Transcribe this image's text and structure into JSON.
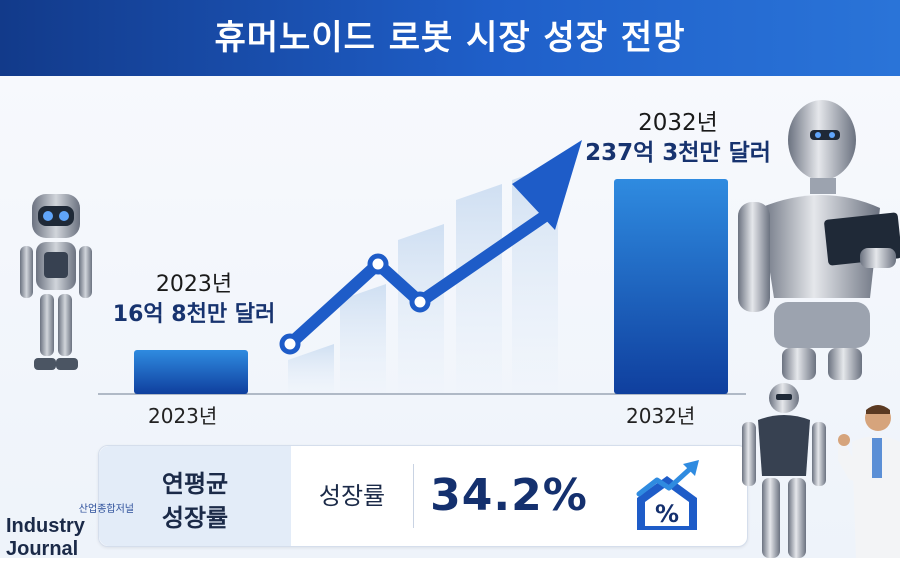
{
  "header": {
    "title": "휴머노이드 로봇 시장 성장 전망"
  },
  "chart_data": {
    "type": "bar",
    "categories": [
      "2023년",
      "2032년"
    ],
    "values": [
      16.8,
      237.3
    ],
    "value_labels": [
      "16억 8천만 달러",
      "237억 3천만 달러"
    ],
    "year_labels": [
      "2023년",
      "2032년"
    ],
    "unit": "억 달러",
    "colors": {
      "bar_top": "#2f8be0",
      "bar_bottom": "#0f3f9e",
      "arrow": "#1e5cc8",
      "ghost": "#dde8f5"
    }
  },
  "cagr": {
    "label_line1": "연평균",
    "label_line2": "성장률",
    "metric": "성장률",
    "value": "34.2%",
    "icon": "growth-percent-icon"
  },
  "brand": {
    "small": "산업종합저널",
    "name": "Industry Journal"
  }
}
